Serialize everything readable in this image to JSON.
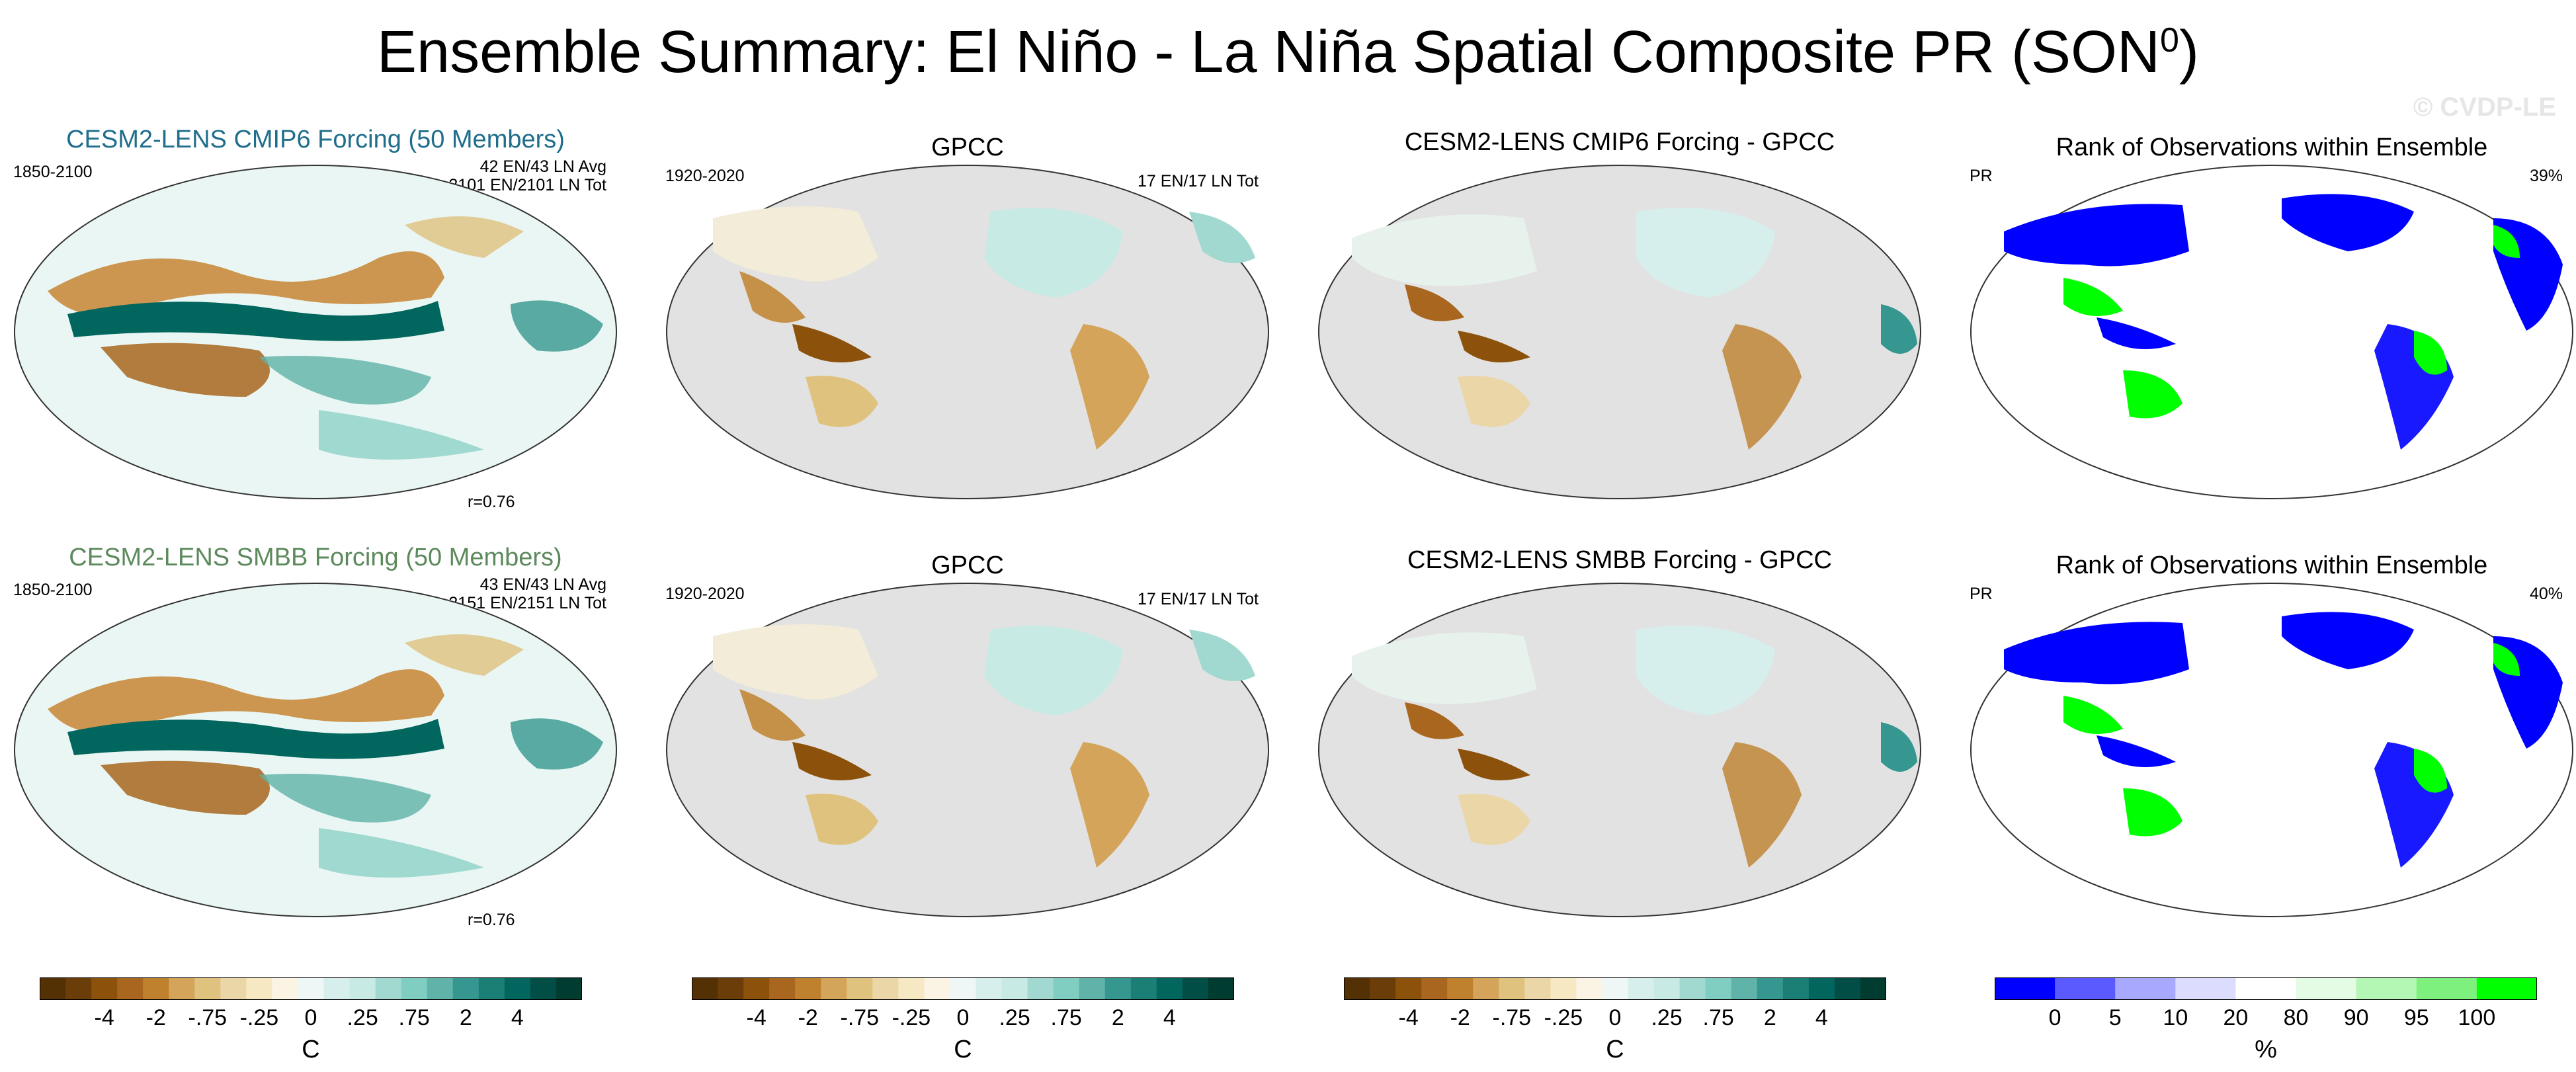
{
  "title": {
    "text": "Ensemble Summary: El Niño - La Niña Spatial Composite PR (SON",
    "sup": "0",
    "close": ")"
  },
  "watermark": "© CVDP-LE",
  "rows": [
    {
      "panels": [
        {
          "title": "CESM2-LENS CMIP6 Forcing (50 Members)",
          "title_color": "#1f6e8c",
          "left": "1850-2100",
          "right1": "42 EN/43 LN Avg",
          "right2": "2101 EN/2101 LN Tot",
          "corr": "r=0.76"
        },
        {
          "title": "GPCC",
          "left": "1920-2020",
          "right1": "17 EN/17 LN Tot"
        },
        {
          "title": "CESM2-LENS CMIP6 Forcing - GPCC"
        },
        {
          "title": "Rank of Observations within Ensemble",
          "left": "PR",
          "right1": "39%"
        }
      ]
    },
    {
      "panels": [
        {
          "title": "CESM2-LENS SMBB Forcing (50 Members)",
          "title_color": "#5c8a5c",
          "left": "1850-2100",
          "right1": "43 EN/43 LN Avg",
          "right2": "2151 EN/2151 LN Tot",
          "corr": "r=0.76"
        },
        {
          "title": "GPCC",
          "left": "1920-2020",
          "right1": "17 EN/17 LN Tot"
        },
        {
          "title": "CESM2-LENS SMBB Forcing - GPCC"
        },
        {
          "title": "Rank of Observations within Ensemble",
          "left": "PR",
          "right1": "40%"
        }
      ]
    }
  ],
  "colorbars": {
    "brbg": {
      "colors": [
        "#543005",
        "#6b3d09",
        "#8c510a",
        "#a8661e",
        "#bf812d",
        "#d3a459",
        "#dfc27d",
        "#ebd6a8",
        "#f6e8c3",
        "#fbf4e4",
        "#eef7f5",
        "#d7efec",
        "#c7eae5",
        "#a1d9d0",
        "#80cdc1",
        "#5fb3a8",
        "#35978f",
        "#1c7f76",
        "#01665e",
        "#014e46",
        "#003c30"
      ],
      "tick_labels": [
        "-4",
        "-2",
        "-.75",
        "-.25",
        "0",
        ".25",
        ".75",
        "2",
        "4"
      ],
      "unit": "C"
    },
    "rank": {
      "colors": [
        "#0000ff",
        "#5a5aff",
        "#a8a8ff",
        "#dcdcff",
        "#ffffff",
        "#e4fce4",
        "#b4f7b4",
        "#7df07d",
        "#00ff00"
      ],
      "tick_labels": [
        "0",
        "5",
        "10",
        "20",
        "80",
        "90",
        "95",
        "100"
      ],
      "unit": "%"
    }
  }
}
